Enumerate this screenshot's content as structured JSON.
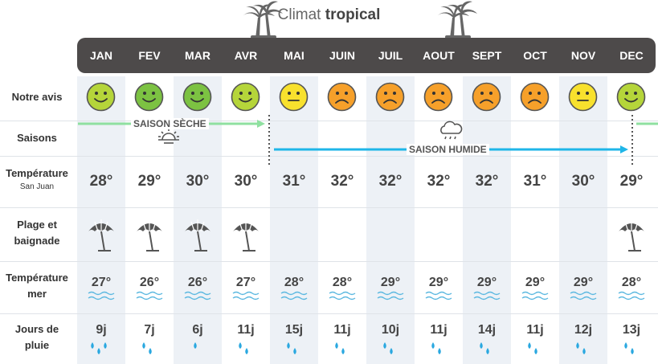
{
  "title_prefix": "Climat",
  "title_bold": "tropical",
  "months": [
    "JAN",
    "FEV",
    "MAR",
    "AVR",
    "MAI",
    "JUIN",
    "JUIL",
    "AOUT",
    "SEPT",
    "OCT",
    "NOV",
    "DEC"
  ],
  "row_labels": {
    "avis": "Notre avis",
    "saisons": "Saisons",
    "temp": "Température",
    "temp_sub": "San Juan",
    "plage_1": "Plage et",
    "plage_2": "baignade",
    "mer_1": "Température",
    "mer_2": "mer",
    "pluie_1": "Jours de",
    "pluie_2": "pluie"
  },
  "ratings": [
    "good",
    "great",
    "great",
    "good",
    "ok",
    "bad",
    "bad",
    "bad",
    "bad",
    "bad",
    "ok",
    "good"
  ],
  "colors": {
    "great": "#7cc242",
    "good": "#b5d53a",
    "ok": "#f8e12d",
    "bad": "#f6a02a",
    "dry": "#8fe0a0",
    "wet": "#1fb6e8"
  },
  "seasons": {
    "dry": "SAISON SÈCHE",
    "wet": "SAISON HUMIDE"
  },
  "temperatures": [
    "28°",
    "29°",
    "30°",
    "30°",
    "31°",
    "32°",
    "32°",
    "32°",
    "32°",
    "31°",
    "30°",
    "29°"
  ],
  "beach": [
    true,
    true,
    true,
    true,
    false,
    false,
    false,
    false,
    false,
    false,
    false,
    true
  ],
  "sea_temperatures": [
    "27°",
    "26°",
    "26°",
    "27°",
    "28°",
    "28°",
    "29°",
    "29°",
    "29°",
    "29°",
    "29°",
    "28°"
  ],
  "rain_days": [
    "9j",
    "7j",
    "6j",
    "11j",
    "15j",
    "11j",
    "10j",
    "11j",
    "14j",
    "11j",
    "12j",
    "13j"
  ],
  "rain_drops": [
    3,
    2,
    1,
    2,
    2,
    2,
    2,
    2,
    2,
    2,
    2,
    2
  ]
}
